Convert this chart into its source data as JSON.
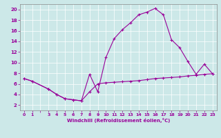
{
  "xlabel": "Windchill (Refroidissement éolien,°C)",
  "ylabel": "",
  "background_color": "#cce8e8",
  "line_color": "#990099",
  "xlim": [
    -0.5,
    23.5
  ],
  "ylim": [
    1,
    21
  ],
  "yticks": [
    2,
    4,
    6,
    8,
    10,
    12,
    14,
    16,
    18,
    20
  ],
  "xtick_labels": [
    "0",
    "1",
    "",
    "3",
    "4",
    "5",
    "6",
    "7",
    "8",
    "9",
    "10",
    "11",
    "12",
    "13",
    "14",
    "15",
    "16",
    "17",
    "18",
    "19",
    "20",
    "21",
    "22",
    "23"
  ],
  "xtick_pos": [
    0,
    1,
    2,
    3,
    4,
    5,
    6,
    7,
    8,
    9,
    10,
    11,
    12,
    13,
    14,
    15,
    16,
    17,
    18,
    19,
    20,
    21,
    22,
    23
  ],
  "series1_x": [
    0,
    1,
    3,
    4,
    5,
    6,
    7,
    8,
    9,
    10,
    11,
    12,
    13,
    14,
    15,
    16,
    17,
    18,
    19,
    20,
    21,
    22,
    23
  ],
  "series1_y": [
    7.0,
    6.5,
    5.0,
    4.0,
    3.2,
    3.0,
    2.8,
    7.8,
    4.5,
    11.0,
    14.5,
    16.2,
    17.5,
    19.0,
    19.5,
    20.2,
    19.0,
    14.3,
    12.8,
    10.2,
    7.8,
    9.7,
    7.9
  ],
  "series2_x": [
    0,
    1,
    3,
    4,
    5,
    6,
    7,
    8,
    9,
    10,
    11,
    12,
    13,
    14,
    15,
    16,
    17,
    18,
    19,
    20,
    21,
    22,
    23
  ],
  "series2_y": [
    7.0,
    6.5,
    5.0,
    4.0,
    3.2,
    3.0,
    2.8,
    4.5,
    6.0,
    6.2,
    6.3,
    6.4,
    6.5,
    6.6,
    6.8,
    7.0,
    7.1,
    7.2,
    7.3,
    7.5,
    7.6,
    7.8,
    7.9
  ]
}
